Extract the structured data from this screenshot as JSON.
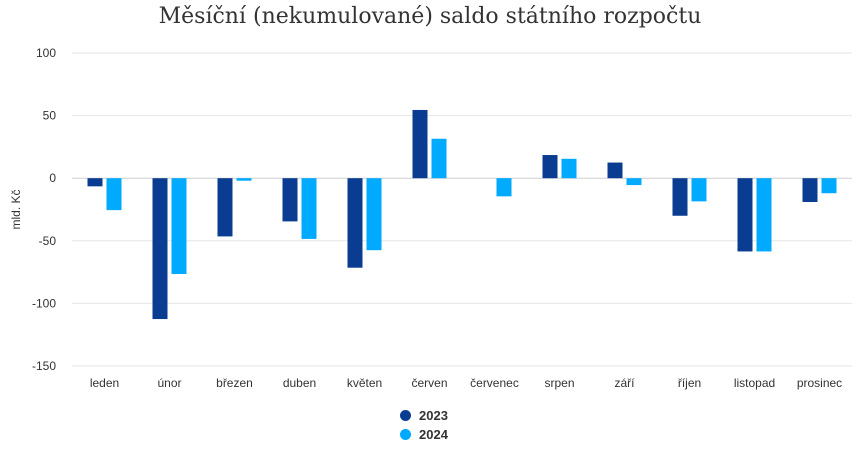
{
  "chart_data": {
    "type": "bar",
    "title": "Měsíční (nekumulované) saldo státního rozpočtu",
    "ylabel": "mld. Kč",
    "xlabel": "",
    "ylim": [
      -150,
      100
    ],
    "yticks": [
      100,
      50,
      0,
      -50,
      -100,
      -150
    ],
    "grid": true,
    "legend_position": "bottom",
    "categories": [
      "leden",
      "únor",
      "březen",
      "duben",
      "květen",
      "červen",
      "červenec",
      "srpen",
      "září",
      "říjen",
      "listopad",
      "prosinec"
    ],
    "series": [
      {
        "name": "2023",
        "color": "#0a3d91",
        "values": [
          -6.5,
          -112.5,
          -46.5,
          -34.5,
          -71.5,
          54.5,
          null,
          18.5,
          12.5,
          -30,
          -58.5,
          -19
        ]
      },
      {
        "name": "2024",
        "color": "#00aaff",
        "values": [
          -25.5,
          -76.5,
          -2,
          -48.5,
          -57.5,
          31.5,
          -14.5,
          15.5,
          -5.5,
          -18.5,
          -58.5,
          -12
        ]
      }
    ]
  }
}
